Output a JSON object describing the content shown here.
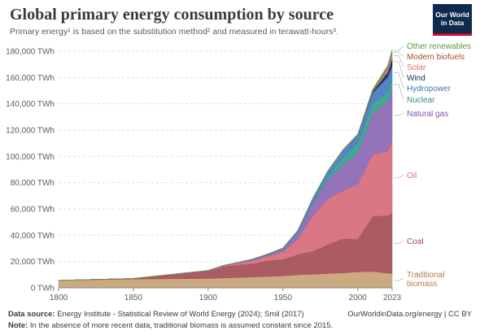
{
  "header": {
    "title": "Global primary energy consumption by source",
    "subtitle": "Primary energy¹ is based on the substitution method² and measured in terawatt-hours³.",
    "logo_line1": "Our World",
    "logo_line2": "in Data"
  },
  "footer": {
    "source_label": "Data source:",
    "source_text": "Energy Institute - Statistical Review of World Energy (2024); Smil (2017)",
    "credit": "OurWorldinData.org/energy | CC BY",
    "note_label": "Note:",
    "note_text": "In the absence of more recent data, traditional biomass is assumed constant since 2015."
  },
  "chart_data": {
    "type": "area",
    "stacked": true,
    "x": [
      1800,
      1850,
      1900,
      1910,
      1920,
      1930,
      1940,
      1950,
      1960,
      1970,
      1980,
      1990,
      2000,
      2010,
      2020,
      2023
    ],
    "x_ticks": [
      "1800",
      "1850",
      "1900",
      "1950",
      "2000",
      "2023"
    ],
    "y_ticks": [
      "0 TWh",
      "20,000 TWh",
      "40,000 TWh",
      "60,000 TWh",
      "80,000 TWh",
      "100,000 TWh",
      "120,000 TWh",
      "140,000 TWh",
      "160,000 TWh",
      "180,000 TWh"
    ],
    "ylim": [
      0,
      180000
    ],
    "xlim": [
      1800,
      2023
    ],
    "grid": "horizontal dashed",
    "legend": "right-side labels",
    "series": [
      {
        "name": "Traditional biomass",
        "color": "#c9a57a",
        "label_color": "#b57a45",
        "values": [
          5600,
          6700,
          7200,
          7500,
          7900,
          8300,
          8700,
          9100,
          9900,
          10400,
          10900,
          11400,
          12200,
          12500,
          11100,
          11100
        ]
      },
      {
        "name": "Coal",
        "color": "#a6525a",
        "label_color": "#a04a52",
        "values": [
          100,
          500,
          5700,
          8700,
          9600,
          10100,
          12000,
          12500,
          15500,
          17500,
          22000,
          26000,
          25000,
          42000,
          44000,
          45500
        ]
      },
      {
        "name": "Oil",
        "color": "#d7707e",
        "label_color": "#d7707e",
        "values": [
          0,
          0,
          200,
          500,
          1300,
          2500,
          3400,
          5800,
          12000,
          27000,
          35000,
          36500,
          41500,
          47000,
          49000,
          54600
        ]
      },
      {
        "name": "Natural gas",
        "color": "#8e6cb4",
        "label_color": "#7d55a8",
        "values": [
          0,
          0,
          70,
          150,
          270,
          600,
          900,
          2000,
          4500,
          10200,
          14500,
          19500,
          24000,
          31000,
          38000,
          40000
        ]
      },
      {
        "name": "Nuclear",
        "color": "#3aa38f",
        "label_color": "#2f8f80",
        "values": [
          0,
          0,
          0,
          0,
          0,
          0,
          0,
          0,
          10,
          200,
          1900,
          5400,
          6900,
          7200,
          7000,
          7100
        ]
      },
      {
        "name": "Hydropower",
        "color": "#4a80c2",
        "label_color": "#3e74b8",
        "values": [
          0,
          0,
          50,
          150,
          300,
          500,
          800,
          900,
          1800,
          3000,
          4500,
          5700,
          6600,
          8700,
          11200,
          10900
        ]
      },
      {
        "name": "Wind",
        "color": "#1e2d6b",
        "label_color": "#1e2d6b",
        "values": [
          0,
          0,
          0,
          0,
          0,
          0,
          0,
          0,
          0,
          0,
          0,
          10,
          100,
          900,
          4100,
          5600
        ]
      },
      {
        "name": "Solar",
        "color": "#e8878a",
        "label_color": "#e06d70",
        "values": [
          0,
          0,
          0,
          0,
          0,
          0,
          0,
          0,
          0,
          0,
          0,
          0,
          10,
          100,
          2200,
          3600
        ]
      },
      {
        "name": "Modern biofuels",
        "color": "#a0512f",
        "label_color": "#a0512f",
        "values": [
          0,
          0,
          0,
          0,
          0,
          0,
          0,
          0,
          0,
          0,
          40,
          100,
          150,
          800,
          1050,
          1200
        ]
      },
      {
        "name": "Other renewables",
        "color": "#6aa84f",
        "label_color": "#5a9a40",
        "values": [
          0,
          0,
          0,
          0,
          0,
          0,
          0,
          0,
          0,
          100,
          300,
          400,
          550,
          1000,
          1500,
          1700
        ]
      }
    ]
  }
}
